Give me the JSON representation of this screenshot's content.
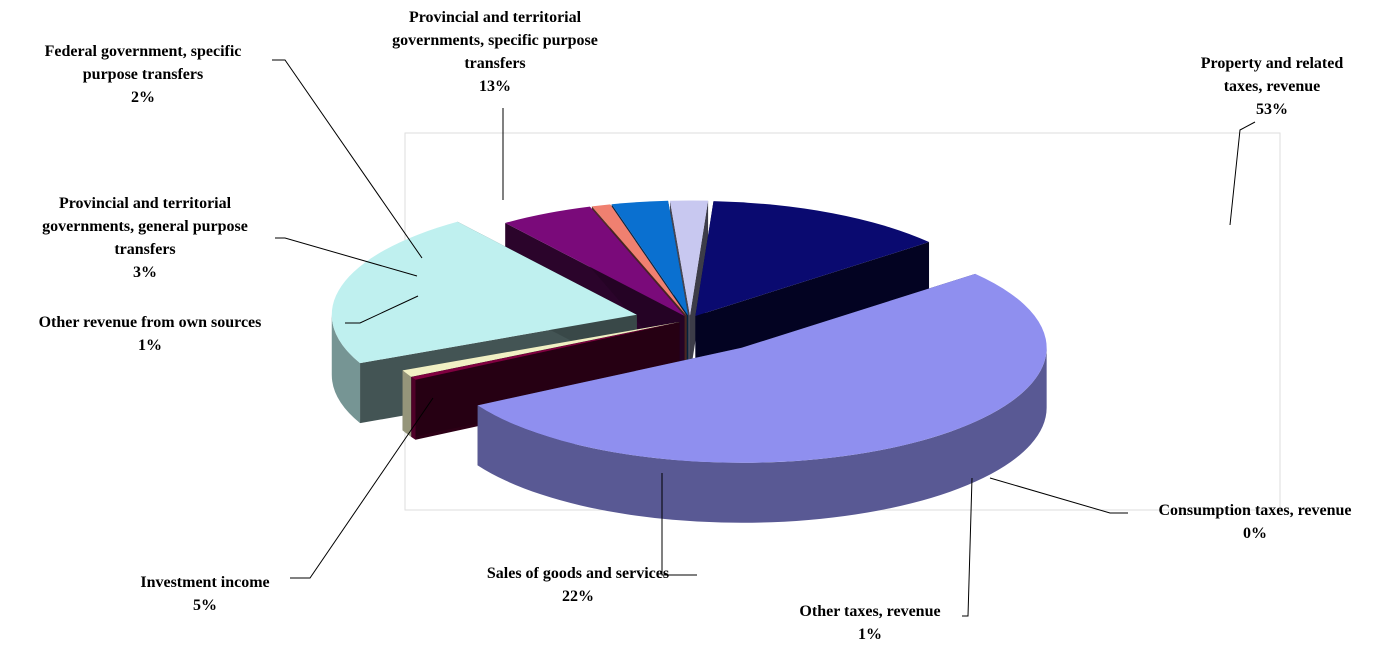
{
  "chart_data": {
    "type": "pie",
    "style": "3d-exploded",
    "title": "",
    "legend": "none",
    "slices": [
      {
        "name": "Property and related taxes, revenue",
        "value": 53,
        "display": "53%",
        "color": "#8f8fef",
        "label_lines": [
          "Property and related",
          "taxes, revenue",
          "53%"
        ]
      },
      {
        "name": "Consumption taxes, revenue",
        "value": 0,
        "display": "0%",
        "color": "#800040",
        "label_lines": [
          "Consumption taxes, revenue",
          "0%"
        ]
      },
      {
        "name": "Other taxes, revenue",
        "value": 1,
        "display": "1%",
        "color": "#f1f0c4",
        "label_lines": [
          "Other taxes, revenue",
          "1%"
        ]
      },
      {
        "name": "Sales of goods and services",
        "value": 22,
        "display": "22%",
        "color": "#bff0ef",
        "label_lines": [
          "Sales of goods and services",
          "22%"
        ]
      },
      {
        "name": "Investment income",
        "value": 5,
        "display": "5%",
        "color": "#7a0a7a",
        "label_lines": [
          "Investment income",
          "5%"
        ]
      },
      {
        "name": "Other revenue from own sources",
        "value": 1,
        "display": "1%",
        "color": "#f08070",
        "label_lines": [
          "Other revenue from own sources",
          "1%"
        ]
      },
      {
        "name": "Provincial and territorial governments, general purpose transfers",
        "value": 3,
        "display": "3%",
        "color": "#0a70d0",
        "label_lines": [
          "Provincial and territorial",
          "governments, general purpose",
          "transfers",
          "3%"
        ]
      },
      {
        "name": "Federal government, specific purpose transfers",
        "value": 2,
        "display": "2%",
        "color": "#c8c8f0",
        "label_lines": [
          "Federal government, specific",
          "purpose transfers",
          "2%"
        ]
      },
      {
        "name": "Provincial and territorial governments, specific purpose transfers",
        "value": 13,
        "display": "13%",
        "color": "#0a0a70",
        "label_lines": [
          "Provincial and territorial",
          "governments, specific purpose",
          "transfers",
          "13%"
        ]
      }
    ]
  }
}
